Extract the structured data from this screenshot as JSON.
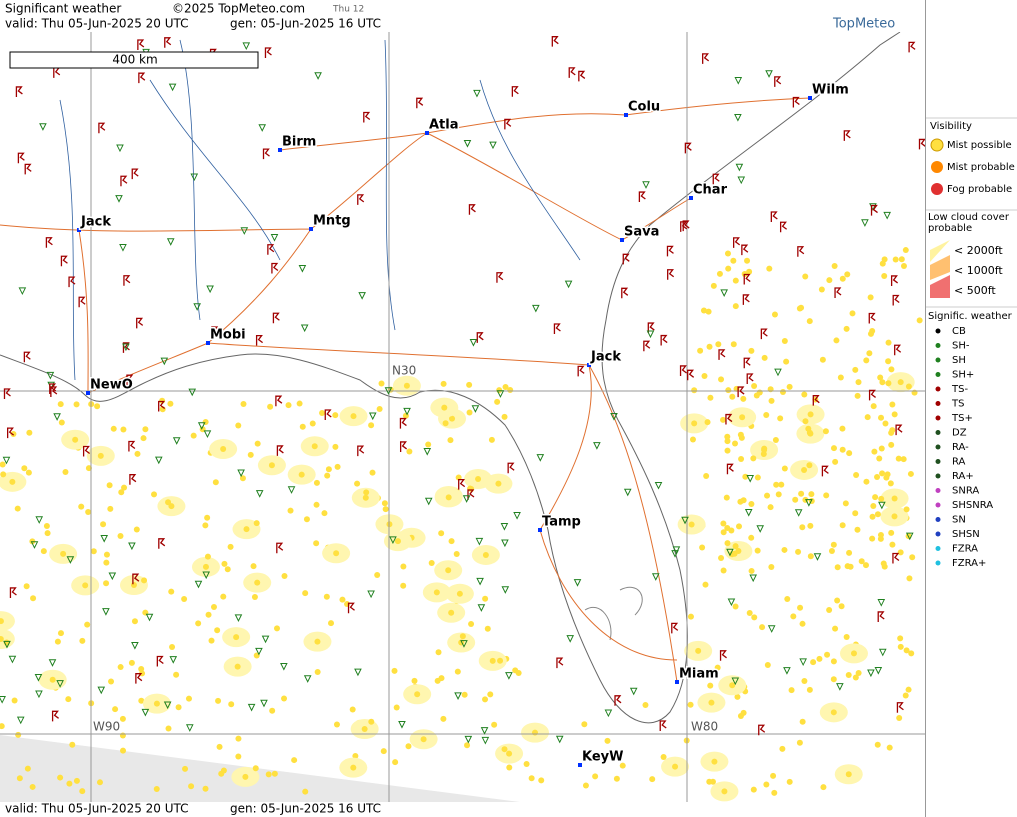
{
  "header": {
    "title": "Significant weather",
    "copyright": "©2025 TopMeteo.com",
    "tab": "Thu 12",
    "valid": "valid:  Thu  05-Jun-2025  20 UTC",
    "gen": "gen: 05-Jun-2025 16 UTC",
    "logo": "TopMeteo"
  },
  "footer": {
    "valid": "valid:  Thu  05-Jun-2025  20 UTC",
    "gen": "gen: 05-Jun-2025 16 UTC"
  },
  "map": {
    "scale": "400 km",
    "cities": [
      "Birm",
      "Atla",
      "Colu",
      "Wilm",
      "Char",
      "Sava",
      "Jack",
      "Mntg",
      "Mobi",
      "NewO",
      "Jack",
      "Tamp",
      "Miam",
      "KeyW"
    ],
    "grid_labels": [
      "N30",
      "W90",
      "W80"
    ]
  },
  "legend": {
    "visibility": {
      "title": "Visibility",
      "items": [
        "Mist possible",
        "Mist probable",
        "Fog probable"
      ]
    },
    "low_cloud": {
      "title": "Low cloud cover probable",
      "items": [
        "< 2000ft",
        "< 1000ft",
        "<  500ft"
      ]
    },
    "weather": {
      "title": "Signific. weather",
      "items": [
        "CB",
        "SH-",
        "SH",
        "SH+",
        "TS-",
        "TS",
        "TS+",
        "DZ",
        "RA-",
        "RA",
        "RA+",
        "SNRA",
        "SHSNRA",
        "SN",
        "SHSN",
        "FZRA",
        "FZRA+"
      ]
    }
  }
}
